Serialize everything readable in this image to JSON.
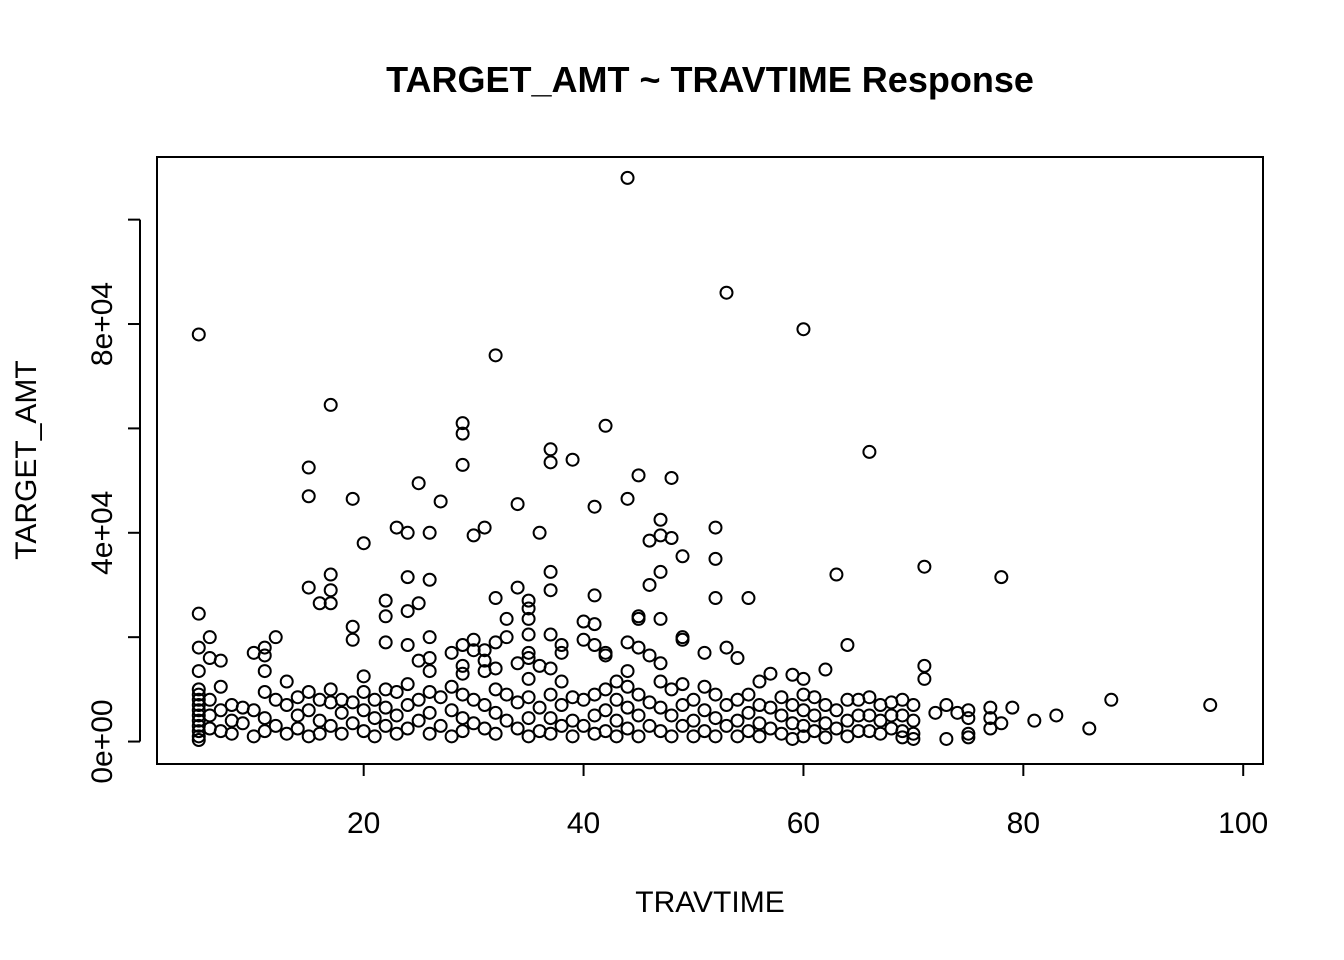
{
  "chart_data": {
    "type": "scatter",
    "title": "TARGET_AMT ~ TRAVTIME Response",
    "xlabel": "TRAVTIME",
    "ylabel": "TARGET_AMT",
    "xlim": [
      1.2,
      101.8
    ],
    "ylim": [
      -4300,
      112000
    ],
    "xticks": [
      {
        "value": 20,
        "label": "20"
      },
      {
        "value": 40,
        "label": "40"
      },
      {
        "value": 60,
        "label": "60"
      },
      {
        "value": 80,
        "label": "80"
      },
      {
        "value": 100,
        "label": "100"
      }
    ],
    "yticks": [
      {
        "value": 0,
        "label": "0e+00"
      },
      {
        "value": 20000,
        "label": ""
      },
      {
        "value": 40000,
        "label": "4e+04"
      },
      {
        "value": 60000,
        "label": ""
      },
      {
        "value": 80000,
        "label": "8e+04"
      },
      {
        "value": 100000,
        "label": ""
      }
    ],
    "grid": false,
    "marker": "open-circle",
    "points": [
      [
        5,
        78000
      ],
      [
        5,
        24500
      ],
      [
        5,
        18000
      ],
      [
        5,
        13500
      ],
      [
        5,
        10000
      ],
      [
        5,
        9000
      ],
      [
        5,
        8000
      ],
      [
        5,
        7000
      ],
      [
        5,
        6000
      ],
      [
        5,
        5000
      ],
      [
        5,
        4000
      ],
      [
        5,
        3000
      ],
      [
        5,
        2000
      ],
      [
        5,
        1000
      ],
      [
        5,
        300
      ],
      [
        6,
        20000
      ],
      [
        6,
        16000
      ],
      [
        6,
        8000
      ],
      [
        6,
        5000
      ],
      [
        6,
        2500
      ],
      [
        7,
        15500
      ],
      [
        7,
        10500
      ],
      [
        7,
        6000
      ],
      [
        7,
        2000
      ],
      [
        8,
        7000
      ],
      [
        8,
        4000
      ],
      [
        8,
        1500
      ],
      [
        9,
        6500
      ],
      [
        9,
        3500
      ],
      [
        10,
        17000
      ],
      [
        10,
        6000
      ],
      [
        10,
        1000
      ],
      [
        11,
        18000
      ],
      [
        11,
        16500
      ],
      [
        11,
        13500
      ],
      [
        11,
        9500
      ],
      [
        11,
        4500
      ],
      [
        11,
        2000
      ],
      [
        12,
        20000
      ],
      [
        12,
        8000
      ],
      [
        12,
        3000
      ],
      [
        13,
        11500
      ],
      [
        13,
        7000
      ],
      [
        13,
        1500
      ],
      [
        14,
        8500
      ],
      [
        14,
        5000
      ],
      [
        14,
        2500
      ],
      [
        15,
        52500
      ],
      [
        15,
        47000
      ],
      [
        15,
        29500
      ],
      [
        15,
        9500
      ],
      [
        15,
        6000
      ],
      [
        15,
        1000
      ],
      [
        16,
        26500
      ],
      [
        16,
        8000
      ],
      [
        16,
        4000
      ],
      [
        16,
        1500
      ],
      [
        17,
        64500
      ],
      [
        17,
        32000
      ],
      [
        17,
        29000
      ],
      [
        17,
        26500
      ],
      [
        17,
        10000
      ],
      [
        17,
        7500
      ],
      [
        17,
        3000
      ],
      [
        18,
        8000
      ],
      [
        18,
        5500
      ],
      [
        18,
        1500
      ],
      [
        19,
        46500
      ],
      [
        19,
        22000
      ],
      [
        19,
        19500
      ],
      [
        19,
        7500
      ],
      [
        19,
        3500
      ],
      [
        20,
        38000
      ],
      [
        20,
        12500
      ],
      [
        20,
        9500
      ],
      [
        20,
        6000
      ],
      [
        20,
        2000
      ],
      [
        21,
        8000
      ],
      [
        21,
        4500
      ],
      [
        21,
        1000
      ],
      [
        22,
        27000
      ],
      [
        22,
        24000
      ],
      [
        22,
        19000
      ],
      [
        22,
        10000
      ],
      [
        22,
        6500
      ],
      [
        22,
        3000
      ],
      [
        23,
        41000
      ],
      [
        23,
        9500
      ],
      [
        23,
        5000
      ],
      [
        23,
        1500
      ],
      [
        24,
        40000
      ],
      [
        24,
        31500
      ],
      [
        24,
        25000
      ],
      [
        24,
        18500
      ],
      [
        24,
        11000
      ],
      [
        24,
        7000
      ],
      [
        24,
        2500
      ],
      [
        25,
        49500
      ],
      [
        25,
        26500
      ],
      [
        25,
        15500
      ],
      [
        25,
        8000
      ],
      [
        25,
        4000
      ],
      [
        26,
        40000
      ],
      [
        26,
        31000
      ],
      [
        26,
        20000
      ],
      [
        26,
        16000
      ],
      [
        26,
        13500
      ],
      [
        26,
        9500
      ],
      [
        26,
        5500
      ],
      [
        26,
        1500
      ],
      [
        27,
        46000
      ],
      [
        27,
        8500
      ],
      [
        27,
        3000
      ],
      [
        28,
        17000
      ],
      [
        28,
        10500
      ],
      [
        28,
        6000
      ],
      [
        28,
        1000
      ],
      [
        29,
        61000
      ],
      [
        29,
        59000
      ],
      [
        29,
        53000
      ],
      [
        29,
        18500
      ],
      [
        29,
        14500
      ],
      [
        29,
        13000
      ],
      [
        29,
        9000
      ],
      [
        29,
        4500
      ],
      [
        29,
        2000
      ],
      [
        30,
        39500
      ],
      [
        30,
        19500
      ],
      [
        30,
        17500
      ],
      [
        30,
        8000
      ],
      [
        30,
        3500
      ],
      [
        31,
        41000
      ],
      [
        31,
        17500
      ],
      [
        31,
        15500
      ],
      [
        31,
        13500
      ],
      [
        31,
        7000
      ],
      [
        31,
        2500
      ],
      [
        32,
        74000
      ],
      [
        32,
        27500
      ],
      [
        32,
        19000
      ],
      [
        32,
        14000
      ],
      [
        32,
        10000
      ],
      [
        32,
        5500
      ],
      [
        32,
        1500
      ],
      [
        33,
        23500
      ],
      [
        33,
        20000
      ],
      [
        33,
        9000
      ],
      [
        33,
        4000
      ],
      [
        34,
        45500
      ],
      [
        34,
        29500
      ],
      [
        34,
        15000
      ],
      [
        34,
        7500
      ],
      [
        34,
        2500
      ],
      [
        35,
        27000
      ],
      [
        35,
        25500
      ],
      [
        35,
        23500
      ],
      [
        35,
        20500
      ],
      [
        35,
        17000
      ],
      [
        35,
        16000
      ],
      [
        35,
        12000
      ],
      [
        35,
        8500
      ],
      [
        35,
        4500
      ],
      [
        35,
        1000
      ],
      [
        36,
        40000
      ],
      [
        36,
        14500
      ],
      [
        36,
        6500
      ],
      [
        36,
        2000
      ],
      [
        37,
        56000
      ],
      [
        37,
        53500
      ],
      [
        37,
        32500
      ],
      [
        37,
        29000
      ],
      [
        37,
        20500
      ],
      [
        37,
        14000
      ],
      [
        37,
        9000
      ],
      [
        37,
        4500
      ],
      [
        37,
        1500
      ],
      [
        38,
        18500
      ],
      [
        38,
        17000
      ],
      [
        38,
        11500
      ],
      [
        38,
        7000
      ],
      [
        38,
        3000
      ],
      [
        39,
        54000
      ],
      [
        39,
        8500
      ],
      [
        39,
        4000
      ],
      [
        39,
        1000
      ],
      [
        40,
        23000
      ],
      [
        40,
        19500
      ],
      [
        40,
        8000
      ],
      [
        40,
        3000
      ],
      [
        41,
        45000
      ],
      [
        41,
        28000
      ],
      [
        41,
        22500
      ],
      [
        41,
        18500
      ],
      [
        41,
        9000
      ],
      [
        41,
        5000
      ],
      [
        41,
        1500
      ],
      [
        42,
        60500
      ],
      [
        42,
        17000
      ],
      [
        42,
        16500
      ],
      [
        42,
        10000
      ],
      [
        42,
        6000
      ],
      [
        42,
        2000
      ],
      [
        43,
        11500
      ],
      [
        43,
        8000
      ],
      [
        43,
        4000
      ],
      [
        43,
        1000
      ],
      [
        44,
        108000
      ],
      [
        44,
        46500
      ],
      [
        44,
        19000
      ],
      [
        44,
        13500
      ],
      [
        44,
        10500
      ],
      [
        44,
        6500
      ],
      [
        44,
        2500
      ],
      [
        45,
        51000
      ],
      [
        45,
        24000
      ],
      [
        45,
        23500
      ],
      [
        45,
        18000
      ],
      [
        45,
        9000
      ],
      [
        45,
        5000
      ],
      [
        45,
        1000
      ],
      [
        46,
        38500
      ],
      [
        46,
        30000
      ],
      [
        46,
        16500
      ],
      [
        46,
        7500
      ],
      [
        46,
        3000
      ],
      [
        47,
        42500
      ],
      [
        47,
        39500
      ],
      [
        47,
        32500
      ],
      [
        47,
        23500
      ],
      [
        47,
        15000
      ],
      [
        47,
        11500
      ],
      [
        47,
        6500
      ],
      [
        47,
        2000
      ],
      [
        48,
        50500
      ],
      [
        48,
        39000
      ],
      [
        48,
        10000
      ],
      [
        48,
        5000
      ],
      [
        48,
        1000
      ],
      [
        49,
        35500
      ],
      [
        49,
        20000
      ],
      [
        49,
        19500
      ],
      [
        49,
        11000
      ],
      [
        49,
        7000
      ],
      [
        49,
        3000
      ],
      [
        50,
        8000
      ],
      [
        50,
        4000
      ],
      [
        50,
        1000
      ],
      [
        51,
        17000
      ],
      [
        51,
        10500
      ],
      [
        51,
        6000
      ],
      [
        51,
        2000
      ],
      [
        52,
        41000
      ],
      [
        52,
        35000
      ],
      [
        52,
        27500
      ],
      [
        52,
        9000
      ],
      [
        52,
        4500
      ],
      [
        52,
        1000
      ],
      [
        53,
        86000
      ],
      [
        53,
        18000
      ],
      [
        53,
        7000
      ],
      [
        53,
        3000
      ],
      [
        54,
        16000
      ],
      [
        54,
        8000
      ],
      [
        54,
        4000
      ],
      [
        54,
        1000
      ],
      [
        55,
        27500
      ],
      [
        55,
        9000
      ],
      [
        55,
        5500
      ],
      [
        55,
        2000
      ],
      [
        56,
        11500
      ],
      [
        56,
        7000
      ],
      [
        56,
        3500
      ],
      [
        56,
        1000
      ],
      [
        57,
        13000
      ],
      [
        57,
        6500
      ],
      [
        57,
        2500
      ],
      [
        58,
        8500
      ],
      [
        58,
        5000
      ],
      [
        58,
        1500
      ],
      [
        59,
        12800
      ],
      [
        59,
        7000
      ],
      [
        59,
        3500
      ],
      [
        59,
        500
      ],
      [
        60,
        79000
      ],
      [
        60,
        12000
      ],
      [
        60,
        9000
      ],
      [
        60,
        6000
      ],
      [
        60,
        3000
      ],
      [
        60,
        1000
      ],
      [
        61,
        8500
      ],
      [
        61,
        5000
      ],
      [
        61,
        2000
      ],
      [
        62,
        13800
      ],
      [
        62,
        7000
      ],
      [
        62,
        3500
      ],
      [
        62,
        800
      ],
      [
        63,
        32000
      ],
      [
        63,
        6000
      ],
      [
        63,
        2500
      ],
      [
        64,
        18500
      ],
      [
        64,
        8000
      ],
      [
        64,
        4000
      ],
      [
        64,
        1000
      ],
      [
        65,
        8000
      ],
      [
        65,
        5000
      ],
      [
        65,
        2000
      ],
      [
        66,
        55500
      ],
      [
        66,
        8500
      ],
      [
        66,
        5000
      ],
      [
        66,
        2000
      ],
      [
        67,
        7000
      ],
      [
        67,
        4000
      ],
      [
        67,
        1500
      ],
      [
        68,
        7500
      ],
      [
        68,
        5000
      ],
      [
        68,
        2500
      ],
      [
        69,
        8000
      ],
      [
        69,
        5000
      ],
      [
        69,
        2000
      ],
      [
        69,
        800
      ],
      [
        70,
        7000
      ],
      [
        70,
        4000
      ],
      [
        70,
        1500
      ],
      [
        70,
        500
      ],
      [
        71,
        33500
      ],
      [
        71,
        14500
      ],
      [
        71,
        12000
      ],
      [
        72,
        5500
      ],
      [
        73,
        7000
      ],
      [
        73,
        500
      ],
      [
        74,
        5500
      ],
      [
        75,
        6000
      ],
      [
        75,
        4500
      ],
      [
        75,
        1500
      ],
      [
        75,
        800
      ],
      [
        77,
        6500
      ],
      [
        77,
        4500
      ],
      [
        77,
        2500
      ],
      [
        78,
        31500
      ],
      [
        78,
        3500
      ],
      [
        79,
        6500
      ],
      [
        81,
        4000
      ],
      [
        83,
        5000
      ],
      [
        86,
        2500
      ],
      [
        88,
        8000
      ],
      [
        97,
        7000
      ]
    ]
  }
}
